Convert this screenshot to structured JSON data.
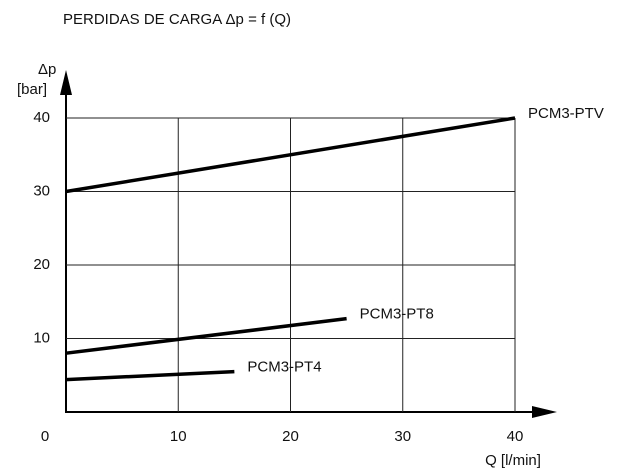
{
  "chart_data": {
    "type": "line",
    "title": "PERDIDAS DE CARGA  Δp = f (Q)",
    "y_label": [
      "Δp",
      "[bar]"
    ],
    "x_label": "Q [l/min]",
    "xlim": [
      0,
      40
    ],
    "xticks": [
      0,
      10,
      20,
      30,
      40
    ],
    "ylim": [
      0,
      40
    ],
    "yticks": [
      10,
      20,
      30,
      40
    ],
    "grid": true,
    "series": [
      {
        "name": "PCM3-PTV",
        "color": "#000000",
        "x": [
          0,
          40
        ],
        "values": [
          30,
          40
        ]
      },
      {
        "name": "PCM3-PT8",
        "color": "#000000",
        "x": [
          0,
          25
        ],
        "values": [
          8,
          12.7
        ]
      },
      {
        "name": "PCM3-PT4",
        "color": "#000000",
        "x": [
          0,
          15
        ],
        "values": [
          4.4,
          5.5
        ]
      }
    ]
  }
}
